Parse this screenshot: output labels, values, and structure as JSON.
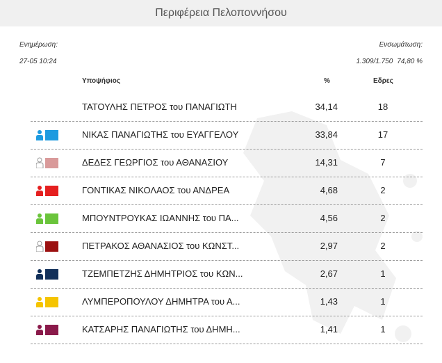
{
  "header": {
    "title": "Περιφέρεια Πελοποννήσου"
  },
  "update": {
    "label": "Ενημέρωση:",
    "value": "27-05 10:24"
  },
  "integration": {
    "label": "Ενσωμάτωση:",
    "count": "1.309/1.750",
    "percent": "74,80 %"
  },
  "columns": {
    "candidate": "Υποψήφιος",
    "percent": "%",
    "seats": "Εδρες"
  },
  "candidates": [
    {
      "name": "ΤΑΤΟΥΛΗΣ ΠΕΤΡΟΣ του ΠΑΝΑΓΙΩΤΗ",
      "percent": "34,14",
      "seats": "18",
      "color": "",
      "icon": ""
    },
    {
      "name": "ΝΙΚΑΣ ΠΑΝΑΓΙΩΤΗΣ του ΕΥΑΓΓΕΛΟΥ",
      "percent": "33,84",
      "seats": "17",
      "color": "#1e9be0",
      "icon": "person-flag-icon"
    },
    {
      "name": "ΔΕΔΕΣ ΓΕΩΡΓΙΟΣ του ΑΘΑΝΑΣΙΟΥ",
      "percent": "14,31",
      "seats": "7",
      "color": "#d99a9a",
      "icon": "person-outline-flag-icon"
    },
    {
      "name": "ΓΟΝΤΙΚΑΣ ΝΙΚΟΛΑΟΣ του ΑΝΔΡΕΑ",
      "percent": "4,68",
      "seats": "2",
      "color": "#e51f1f",
      "icon": "person-flag-icon"
    },
    {
      "name": "ΜΠΟΥΝΤΡΟΥΚΑΣ ΙΩΑΝΝΗΣ του ΠΑ...",
      "percent": "4,56",
      "seats": "2",
      "color": "#6ac43b",
      "icon": "person-flag-icon"
    },
    {
      "name": "ΠΕΤΡΑΚΟΣ ΑΘΑΝΑΣΙΟΣ του ΚΩΝΣΤ...",
      "percent": "2,97",
      "seats": "2",
      "color": "#9b1010",
      "icon": "person-outline-flag-icon"
    },
    {
      "name": "ΤΖΕΜΠΕΤΖΗΣ ΔΗΜΗΤΡΙΟΣ του ΚΩΝ...",
      "percent": "2,67",
      "seats": "1",
      "color": "#12305a",
      "icon": "person-flag-icon"
    },
    {
      "name": "ΛΥΜΠΕΡΟΠΟΥΛΟΥ ΔΗΜΗΤΡΑ του Α...",
      "percent": "1,43",
      "seats": "1",
      "color": "#f5c400",
      "icon": "person-flag-icon"
    },
    {
      "name": "ΚΑΤΣΑΡΗΣ ΠΑΝΑΓΙΩΤΗΣ του ΔΗΜΗ...",
      "percent": "1,41",
      "seats": "1",
      "color": "#8a1a4a",
      "icon": "person-flag-icon"
    }
  ]
}
